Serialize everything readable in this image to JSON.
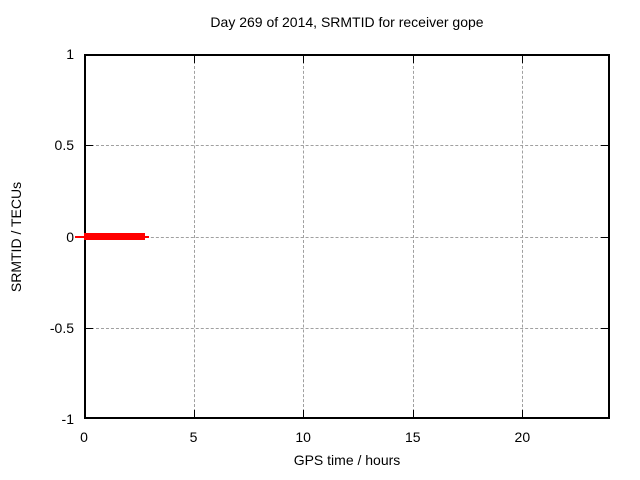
{
  "chart_data": {
    "type": "line",
    "title": "Day 269 of 2014, SRMTID for receiver gope",
    "xlabel": "GPS time / hours",
    "ylabel": "SRMTID / TECUs",
    "xlim": [
      0,
      24
    ],
    "ylim": [
      -1,
      1
    ],
    "grid": true,
    "legend_position": "none",
    "x_ticks": [
      {
        "value": 0,
        "label": "0"
      },
      {
        "value": 5,
        "label": "5"
      },
      {
        "value": 10,
        "label": "10"
      },
      {
        "value": 15,
        "label": "15"
      },
      {
        "value": 20,
        "label": "20"
      }
    ],
    "y_ticks": [
      {
        "value": 1,
        "label": "1"
      },
      {
        "value": 0.5,
        "label": "0.5"
      },
      {
        "value": 0,
        "label": "0"
      },
      {
        "value": -0.5,
        "label": "-0.5"
      },
      {
        "value": -1,
        "label": "-1"
      }
    ],
    "series": [
      {
        "name": "SRMTID",
        "color": "#ff0000",
        "y": 0,
        "segments": [
          {
            "x0": -0.41,
            "x1": 2.97,
            "y": 0,
            "thickness_px": 2
          },
          {
            "x0": 0,
            "x1": 2.78,
            "y": 0,
            "thickness_px": 7
          }
        ]
      }
    ],
    "colors": {
      "background": "#ffffff",
      "border": "#000000",
      "grid": "#a0a0a0",
      "text": "#000000",
      "series_red": "#ff0000"
    }
  }
}
